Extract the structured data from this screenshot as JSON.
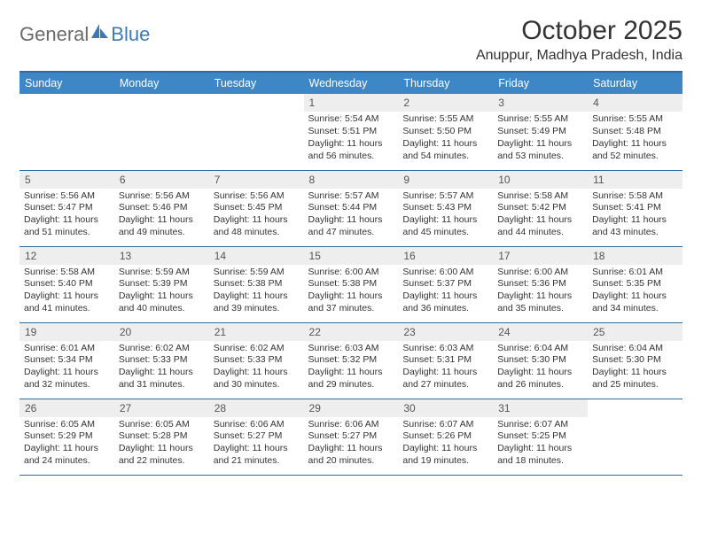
{
  "logo": {
    "part1": "General",
    "part2": "Blue"
  },
  "title": "October 2025",
  "location": "Anuppur, Madhya Pradesh, India",
  "colors": {
    "header_bg": "#3d87c7",
    "header_border": "#2f6aa0",
    "daynum_bg": "#eeeeee",
    "logo_gray": "#6a6a6a",
    "logo_blue": "#3a7ab8"
  },
  "weekdays": [
    "Sunday",
    "Monday",
    "Tuesday",
    "Wednesday",
    "Thursday",
    "Friday",
    "Saturday"
  ],
  "weeks": [
    [
      {
        "day": "",
        "lines": []
      },
      {
        "day": "",
        "lines": []
      },
      {
        "day": "",
        "lines": []
      },
      {
        "day": "1",
        "lines": [
          "Sunrise: 5:54 AM",
          "Sunset: 5:51 PM",
          "Daylight: 11 hours",
          "and 56 minutes."
        ]
      },
      {
        "day": "2",
        "lines": [
          "Sunrise: 5:55 AM",
          "Sunset: 5:50 PM",
          "Daylight: 11 hours",
          "and 54 minutes."
        ]
      },
      {
        "day": "3",
        "lines": [
          "Sunrise: 5:55 AM",
          "Sunset: 5:49 PM",
          "Daylight: 11 hours",
          "and 53 minutes."
        ]
      },
      {
        "day": "4",
        "lines": [
          "Sunrise: 5:55 AM",
          "Sunset: 5:48 PM",
          "Daylight: 11 hours",
          "and 52 minutes."
        ]
      }
    ],
    [
      {
        "day": "5",
        "lines": [
          "Sunrise: 5:56 AM",
          "Sunset: 5:47 PM",
          "Daylight: 11 hours",
          "and 51 minutes."
        ]
      },
      {
        "day": "6",
        "lines": [
          "Sunrise: 5:56 AM",
          "Sunset: 5:46 PM",
          "Daylight: 11 hours",
          "and 49 minutes."
        ]
      },
      {
        "day": "7",
        "lines": [
          "Sunrise: 5:56 AM",
          "Sunset: 5:45 PM",
          "Daylight: 11 hours",
          "and 48 minutes."
        ]
      },
      {
        "day": "8",
        "lines": [
          "Sunrise: 5:57 AM",
          "Sunset: 5:44 PM",
          "Daylight: 11 hours",
          "and 47 minutes."
        ]
      },
      {
        "day": "9",
        "lines": [
          "Sunrise: 5:57 AM",
          "Sunset: 5:43 PM",
          "Daylight: 11 hours",
          "and 45 minutes."
        ]
      },
      {
        "day": "10",
        "lines": [
          "Sunrise: 5:58 AM",
          "Sunset: 5:42 PM",
          "Daylight: 11 hours",
          "and 44 minutes."
        ]
      },
      {
        "day": "11",
        "lines": [
          "Sunrise: 5:58 AM",
          "Sunset: 5:41 PM",
          "Daylight: 11 hours",
          "and 43 minutes."
        ]
      }
    ],
    [
      {
        "day": "12",
        "lines": [
          "Sunrise: 5:58 AM",
          "Sunset: 5:40 PM",
          "Daylight: 11 hours",
          "and 41 minutes."
        ]
      },
      {
        "day": "13",
        "lines": [
          "Sunrise: 5:59 AM",
          "Sunset: 5:39 PM",
          "Daylight: 11 hours",
          "and 40 minutes."
        ]
      },
      {
        "day": "14",
        "lines": [
          "Sunrise: 5:59 AM",
          "Sunset: 5:38 PM",
          "Daylight: 11 hours",
          "and 39 minutes."
        ]
      },
      {
        "day": "15",
        "lines": [
          "Sunrise: 6:00 AM",
          "Sunset: 5:38 PM",
          "Daylight: 11 hours",
          "and 37 minutes."
        ]
      },
      {
        "day": "16",
        "lines": [
          "Sunrise: 6:00 AM",
          "Sunset: 5:37 PM",
          "Daylight: 11 hours",
          "and 36 minutes."
        ]
      },
      {
        "day": "17",
        "lines": [
          "Sunrise: 6:00 AM",
          "Sunset: 5:36 PM",
          "Daylight: 11 hours",
          "and 35 minutes."
        ]
      },
      {
        "day": "18",
        "lines": [
          "Sunrise: 6:01 AM",
          "Sunset: 5:35 PM",
          "Daylight: 11 hours",
          "and 34 minutes."
        ]
      }
    ],
    [
      {
        "day": "19",
        "lines": [
          "Sunrise: 6:01 AM",
          "Sunset: 5:34 PM",
          "Daylight: 11 hours",
          "and 32 minutes."
        ]
      },
      {
        "day": "20",
        "lines": [
          "Sunrise: 6:02 AM",
          "Sunset: 5:33 PM",
          "Daylight: 11 hours",
          "and 31 minutes."
        ]
      },
      {
        "day": "21",
        "lines": [
          "Sunrise: 6:02 AM",
          "Sunset: 5:33 PM",
          "Daylight: 11 hours",
          "and 30 minutes."
        ]
      },
      {
        "day": "22",
        "lines": [
          "Sunrise: 6:03 AM",
          "Sunset: 5:32 PM",
          "Daylight: 11 hours",
          "and 29 minutes."
        ]
      },
      {
        "day": "23",
        "lines": [
          "Sunrise: 6:03 AM",
          "Sunset: 5:31 PM",
          "Daylight: 11 hours",
          "and 27 minutes."
        ]
      },
      {
        "day": "24",
        "lines": [
          "Sunrise: 6:04 AM",
          "Sunset: 5:30 PM",
          "Daylight: 11 hours",
          "and 26 minutes."
        ]
      },
      {
        "day": "25",
        "lines": [
          "Sunrise: 6:04 AM",
          "Sunset: 5:30 PM",
          "Daylight: 11 hours",
          "and 25 minutes."
        ]
      }
    ],
    [
      {
        "day": "26",
        "lines": [
          "Sunrise: 6:05 AM",
          "Sunset: 5:29 PM",
          "Daylight: 11 hours",
          "and 24 minutes."
        ]
      },
      {
        "day": "27",
        "lines": [
          "Sunrise: 6:05 AM",
          "Sunset: 5:28 PM",
          "Daylight: 11 hours",
          "and 22 minutes."
        ]
      },
      {
        "day": "28",
        "lines": [
          "Sunrise: 6:06 AM",
          "Sunset: 5:27 PM",
          "Daylight: 11 hours",
          "and 21 minutes."
        ]
      },
      {
        "day": "29",
        "lines": [
          "Sunrise: 6:06 AM",
          "Sunset: 5:27 PM",
          "Daylight: 11 hours",
          "and 20 minutes."
        ]
      },
      {
        "day": "30",
        "lines": [
          "Sunrise: 6:07 AM",
          "Sunset: 5:26 PM",
          "Daylight: 11 hours",
          "and 19 minutes."
        ]
      },
      {
        "day": "31",
        "lines": [
          "Sunrise: 6:07 AM",
          "Sunset: 5:25 PM",
          "Daylight: 11 hours",
          "and 18 minutes."
        ]
      },
      {
        "day": "",
        "lines": []
      }
    ]
  ]
}
